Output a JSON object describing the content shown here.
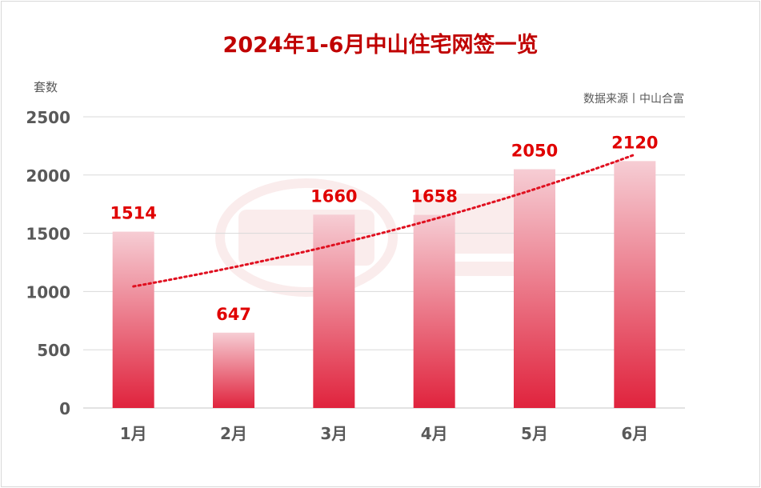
{
  "chart_data": {
    "type": "bar",
    "title": "2024年1-6月中山住宅网签一览",
    "ylabel": "套数",
    "source": "数据来源丨中山合富",
    "categories": [
      "1月",
      "2月",
      "3月",
      "4月",
      "5月",
      "6月"
    ],
    "values": [
      1514,
      647,
      1660,
      1658,
      2050,
      2120
    ],
    "yticks": [
      0,
      500,
      1000,
      1500,
      2000,
      2500
    ],
    "ylim": [
      0,
      2500
    ],
    "grid": true,
    "trendline": {
      "type": "exponential",
      "style": "dotted"
    },
    "colors": {
      "bar_top": "#f5c6cf",
      "bar_bottom": "#e0233d",
      "label": "#e00000",
      "trend": "#e01020"
    }
  }
}
